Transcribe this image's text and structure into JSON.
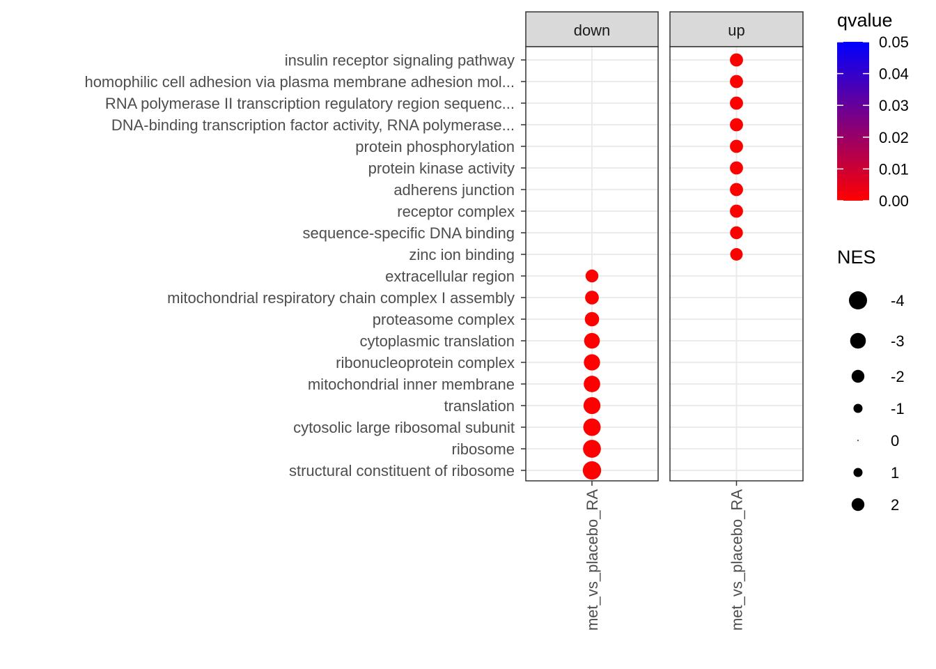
{
  "chart_data": {
    "type": "scatter",
    "panels": [
      "down",
      "up"
    ],
    "x_category": "met_vs_placebo_RA",
    "y_categories": [
      "insulin receptor signaling pathway",
      "homophilic cell adhesion via plasma membrane adhesion mol...",
      "RNA polymerase II transcription regulatory region sequenc...",
      "DNA-binding transcription factor activity, RNA polymerase...",
      "protein phosphorylation",
      "protein kinase activity",
      "adherens junction",
      "receptor complex",
      "sequence-specific DNA binding",
      "zinc ion binding",
      "extracellular region",
      "mitochondrial respiratory chain complex I assembly",
      "proteasome complex",
      "cytoplasmic translation",
      "ribonucleoprotein complex",
      "mitochondrial inner membrane",
      "translation",
      "cytosolic large ribosomal subunit",
      "ribosome",
      "structural constituent of ribosome"
    ],
    "points": [
      {
        "panel": "up",
        "term": "insulin receptor signaling pathway",
        "NES": 2.1,
        "qvalue": 0.0
      },
      {
        "panel": "up",
        "term": "homophilic cell adhesion via plasma membrane adhesion mol...",
        "NES": 2.1,
        "qvalue": 0.0
      },
      {
        "panel": "up",
        "term": "RNA polymerase II transcription regulatory region sequenc...",
        "NES": 2.1,
        "qvalue": 0.0
      },
      {
        "panel": "up",
        "term": "DNA-binding transcription factor activity, RNA polymerase...",
        "NES": 2.1,
        "qvalue": 0.0
      },
      {
        "panel": "up",
        "term": "protein phosphorylation",
        "NES": 2.1,
        "qvalue": 0.0
      },
      {
        "panel": "up",
        "term": "protein kinase activity",
        "NES": 2.1,
        "qvalue": 0.0
      },
      {
        "panel": "up",
        "term": "adherens junction",
        "NES": 2.1,
        "qvalue": 0.0
      },
      {
        "panel": "up",
        "term": "receptor complex",
        "NES": 2.1,
        "qvalue": 0.0
      },
      {
        "panel": "up",
        "term": "sequence-specific DNA binding",
        "NES": 2.0,
        "qvalue": 0.0
      },
      {
        "panel": "up",
        "term": "zinc ion binding",
        "NES": 1.9,
        "qvalue": 0.0
      },
      {
        "panel": "down",
        "term": "extracellular region",
        "NES": -2.0,
        "qvalue": 0.0
      },
      {
        "panel": "down",
        "term": "mitochondrial respiratory chain complex I assembly",
        "NES": -2.3,
        "qvalue": 0.0
      },
      {
        "panel": "down",
        "term": "proteasome complex",
        "NES": -2.5,
        "qvalue": 0.0
      },
      {
        "panel": "down",
        "term": "cytoplasmic translation",
        "NES": -3.0,
        "qvalue": 0.0
      },
      {
        "panel": "down",
        "term": "ribonucleoprotein complex",
        "NES": -3.2,
        "qvalue": 0.0
      },
      {
        "panel": "down",
        "term": "mitochondrial inner membrane",
        "NES": -3.3,
        "qvalue": 0.0
      },
      {
        "panel": "down",
        "term": "translation",
        "NES": -3.5,
        "qvalue": 0.0
      },
      {
        "panel": "down",
        "term": "cytosolic large ribosomal subunit",
        "NES": -3.7,
        "qvalue": 0.0
      },
      {
        "panel": "down",
        "term": "ribosome",
        "NES": -3.9,
        "qvalue": 0.0
      },
      {
        "panel": "down",
        "term": "structural constituent of ribosome",
        "NES": -4.1,
        "qvalue": 0.0
      }
    ],
    "color_legend": {
      "title": "qvalue",
      "ticks": [
        "0.05",
        "0.04",
        "0.03",
        "0.02",
        "0.01",
        "0.00"
      ],
      "range": [
        0.0,
        0.05
      ],
      "low_color": "#ff0000",
      "high_color": "#0000ff"
    },
    "size_legend": {
      "title": "NES",
      "entries": [
        {
          "label": "-4",
          "value": -4
        },
        {
          "label": "-3",
          "value": -3
        },
        {
          "label": "-2",
          "value": -2
        },
        {
          "label": "-1",
          "value": -1
        },
        {
          "label": "0",
          "value": 0
        },
        {
          "label": "1",
          "value": 1
        },
        {
          "label": "2",
          "value": 2
        }
      ]
    },
    "grid": true,
    "legend_position": "right"
  }
}
